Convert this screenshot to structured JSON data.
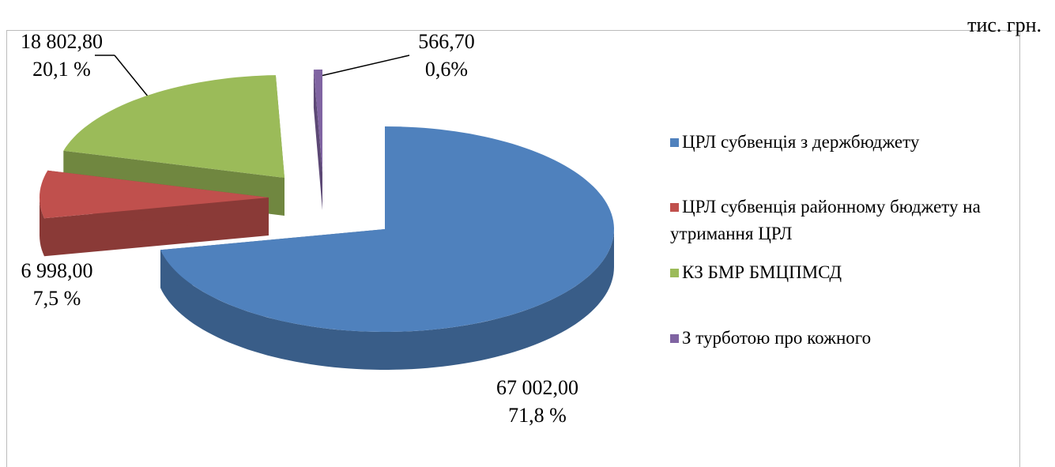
{
  "chart_data": {
    "type": "pie",
    "unit": "тис. грн.",
    "categories": [
      "ЦРЛ субвенція з держбюджету",
      "ЦРЛ субвенція районному бюджету на утримання ЦРЛ",
      "КЗ БМР БМЦПМСД",
      "З  турботою про кожного"
    ],
    "values": [
      67002.0,
      6998.0,
      18802.8,
      566.7
    ],
    "value_labels": [
      "67 002,00",
      "6  998,00",
      "18 802,80",
      "566,70"
    ],
    "percents": [
      71.8,
      7.5,
      20.1,
      0.6
    ],
    "percent_labels": [
      "71,8 %",
      "7,5 %",
      "20,1 %",
      "0,6%"
    ],
    "colors": [
      "#4f81bd",
      "#c0504d",
      "#9bbb59",
      "#8064a2"
    ],
    "legend": "right"
  }
}
